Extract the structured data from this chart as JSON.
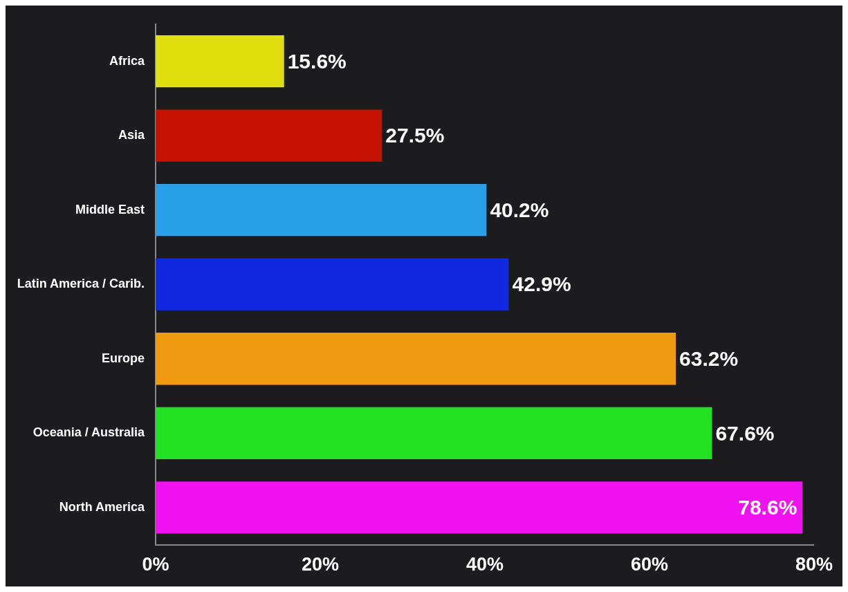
{
  "chart_data": {
    "type": "bar",
    "orientation": "horizontal",
    "categories": [
      "Africa",
      "Asia",
      "Middle East",
      "Latin America / Carib.",
      "Europe",
      "Oceania / Australia",
      "North America"
    ],
    "values": [
      15.6,
      27.5,
      40.2,
      42.9,
      63.2,
      67.6,
      78.6
    ],
    "colors": [
      "#e0e010",
      "#c41200",
      "#2a9ee6",
      "#1028e0",
      "#f09a12",
      "#22e022",
      "#f012f0"
    ],
    "value_labels": [
      "15.6%",
      "27.5%",
      "40.2%",
      "42.9%",
      "63.2%",
      "67.6%",
      "78.6%"
    ],
    "xlim": [
      0,
      80
    ],
    "xticks": [
      {
        "value": 0,
        "label": "0%"
      },
      {
        "value": 20,
        "label": "20%"
      },
      {
        "value": 40,
        "label": "40%"
      },
      {
        "value": 60,
        "label": "60%"
      },
      {
        "value": 80,
        "label": "80%"
      }
    ],
    "grid": false,
    "legend": false
  }
}
